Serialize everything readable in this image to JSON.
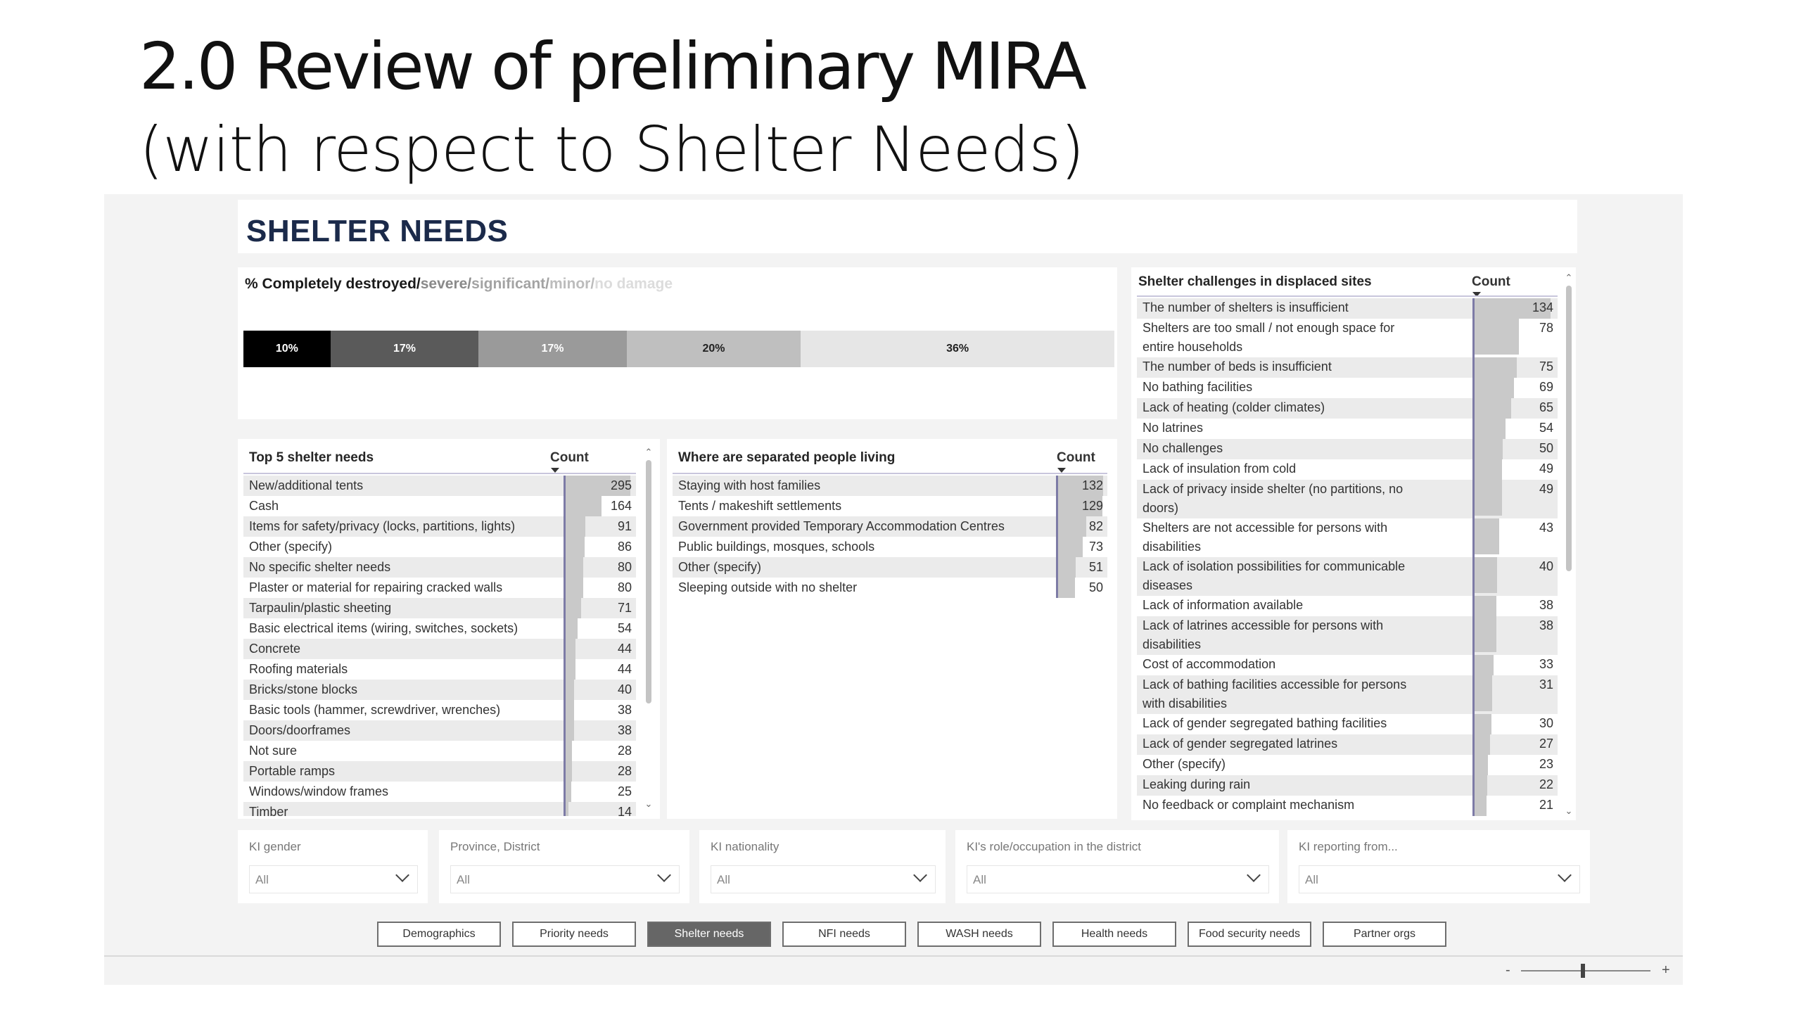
{
  "slide": {
    "title": "2.0  Review of preliminary MIRA",
    "subtitle": "(with respect to Shelter Needs)"
  },
  "report": {
    "title": "SHELTER NEEDS"
  },
  "damage": {
    "legend": [
      "% Completely destroyed/",
      "severe/",
      "significant/",
      "minor/",
      "no damage"
    ],
    "segments": [
      {
        "label": "10%",
        "value": 10,
        "color": "#000000",
        "text_color": "#ffffff"
      },
      {
        "label": "17%",
        "value": 17,
        "color": "#5a5a5a",
        "text_color": "#ffffff"
      },
      {
        "label": "17%",
        "value": 17,
        "color": "#9a9a9a",
        "text_color": "#ffffff"
      },
      {
        "label": "20%",
        "value": 20,
        "color": "#bfbfbf",
        "text_color": "#222222"
      },
      {
        "label": "36%",
        "value": 36,
        "color": "#e6e6e6",
        "text_color": "#222222"
      }
    ]
  },
  "top5": {
    "title": "Top 5 shelter needs",
    "count_label": "Count",
    "max": 295,
    "rows": [
      {
        "label": "New/additional tents",
        "count": 295
      },
      {
        "label": "Cash",
        "count": 164
      },
      {
        "label": "Items for safety/privacy (locks, partitions, lights)",
        "count": 91
      },
      {
        "label": "Other (specify)",
        "count": 86
      },
      {
        "label": "No specific shelter needs",
        "count": 80
      },
      {
        "label": "Plaster or material for repairing cracked walls",
        "count": 80
      },
      {
        "label": "Tarpaulin/plastic sheeting",
        "count": 71
      },
      {
        "label": "Basic electrical items (wiring, switches, sockets)",
        "count": 54
      },
      {
        "label": "Concrete",
        "count": 44
      },
      {
        "label": "Roofing materials",
        "count": 44
      },
      {
        "label": "Bricks/stone blocks",
        "count": 40
      },
      {
        "label": "Basic tools (hammer, screwdriver, wrenches)",
        "count": 38
      },
      {
        "label": "Doors/doorframes",
        "count": 38
      },
      {
        "label": "Not sure",
        "count": 28
      },
      {
        "label": "Portable ramps",
        "count": 28
      },
      {
        "label": "Windows/window frames",
        "count": 25
      },
      {
        "label": "Timber",
        "count": 14
      }
    ]
  },
  "separated": {
    "title": "Where are separated people living",
    "count_label": "Count",
    "max": 132,
    "rows": [
      {
        "label": "Staying with host families",
        "count": 132
      },
      {
        "label": "Tents / makeshift settlements",
        "count": 129
      },
      {
        "label": "Government provided Temporary Accommodation Centres",
        "count": 82
      },
      {
        "label": "Public buildings, mosques, schools",
        "count": 73
      },
      {
        "label": "Other (specify)",
        "count": 51
      },
      {
        "label": "Sleeping outside with no shelter",
        "count": 50
      }
    ]
  },
  "challenges": {
    "title": "Shelter challenges in displaced sites",
    "count_label": "Count",
    "max": 134,
    "rows": [
      {
        "label": [
          "The number of shelters is insufficient"
        ],
        "count": 134
      },
      {
        "label": [
          "Shelters are too small / not enough space for",
          "entire households"
        ],
        "count": 78
      },
      {
        "label": [
          "The number of beds is insufficient"
        ],
        "count": 75
      },
      {
        "label": [
          "No bathing facilities"
        ],
        "count": 69
      },
      {
        "label": [
          "Lack of heating (colder climates)"
        ],
        "count": 65
      },
      {
        "label": [
          "No latrines"
        ],
        "count": 54
      },
      {
        "label": [
          "No challenges"
        ],
        "count": 50
      },
      {
        "label": [
          "Lack of insulation from cold"
        ],
        "count": 49
      },
      {
        "label": [
          "Lack of privacy inside shelter (no partitions, no",
          "doors)"
        ],
        "count": 49
      },
      {
        "label": [
          "Shelters are not accessible for persons with",
          "disabilities"
        ],
        "count": 43
      },
      {
        "label": [
          "Lack of isolation possibilities for communicable",
          "diseases"
        ],
        "count": 40
      },
      {
        "label": [
          "Lack of information available"
        ],
        "count": 38
      },
      {
        "label": [
          "Lack of latrines accessible for persons with",
          "disabilities"
        ],
        "count": 38
      },
      {
        "label": [
          "Cost of accommodation"
        ],
        "count": 33
      },
      {
        "label": [
          "Lack of bathing facilities accessible for persons",
          "with disabilities"
        ],
        "count": 31
      },
      {
        "label": [
          "Lack of gender segregated bathing facilities"
        ],
        "count": 30
      },
      {
        "label": [
          "Lack of gender segregated latrines"
        ],
        "count": 27
      },
      {
        "label": [
          "Other (specify)"
        ],
        "count": 23
      },
      {
        "label": [
          "Leaking during rain"
        ],
        "count": 22
      },
      {
        "label": [
          "No feedback or complaint mechanism"
        ],
        "count": 21
      }
    ]
  },
  "filters": [
    {
      "label": "KI gender",
      "value": "All"
    },
    {
      "label": "Province, District",
      "value": "All"
    },
    {
      "label": "KI nationality",
      "value": "All"
    },
    {
      "label": "KI's role/occupation in the district",
      "value": "All"
    },
    {
      "label": "KI reporting from...",
      "value": "All"
    }
  ],
  "nav": {
    "active": 2,
    "buttons": [
      "Demographics",
      "Priority needs",
      "Shelter needs",
      "NFI needs",
      "WASH needs",
      "Health needs",
      "Food security needs",
      "Partner orgs"
    ]
  },
  "zoom": {
    "minus": "-",
    "plus": "+",
    "level_fraction": 0.48
  }
}
